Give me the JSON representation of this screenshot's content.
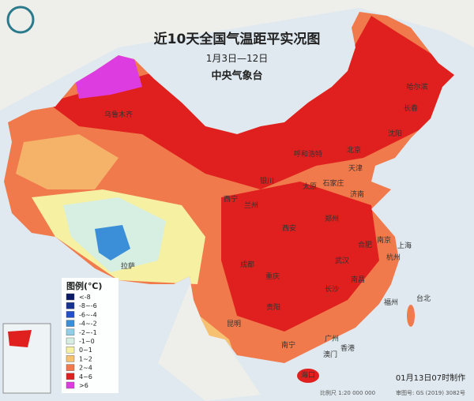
{
  "header": {
    "title": "近10天全国气温距平实况图",
    "subtitle": "1月3日—12日",
    "issuer": "中央气象台"
  },
  "legend": {
    "title": "图例(℃)",
    "items": [
      {
        "label": "<-8",
        "color": "#0b1a66"
      },
      {
        "label": "-8~-6",
        "color": "#16338f"
      },
      {
        "label": "-6~-4",
        "color": "#2350c8"
      },
      {
        "label": "-4~-2",
        "color": "#3b8fd8"
      },
      {
        "label": "-2~-1",
        "color": "#8fd0e8"
      },
      {
        "label": "-1~0",
        "color": "#d6efe2"
      },
      {
        "label": "0~1",
        "color": "#f5f0a2"
      },
      {
        "label": "1~2",
        "color": "#f6c170"
      },
      {
        "label": "2~4",
        "color": "#f07a4c"
      },
      {
        "label": "4~6",
        "color": "#e0201e"
      },
      {
        "label": ">6",
        "color": "#dd3ce0"
      }
    ]
  },
  "cities": [
    "哈尔滨",
    "长春",
    "沈阳",
    "北京",
    "天津",
    "呼和浩特",
    "石家庄",
    "太原",
    "济南",
    "银川",
    "兰州",
    "西宁",
    "西安",
    "郑州",
    "南京",
    "上海",
    "合肥",
    "杭州",
    "武汉",
    "成都",
    "重庆",
    "长沙",
    "南昌",
    "福州",
    "台北",
    "贵阳",
    "昆明",
    "南宁",
    "广州",
    "澳门",
    "香港",
    "海口",
    "拉萨",
    "乌鲁木齐"
  ],
  "footer": {
    "made": "01月13日07时制作",
    "scale": "比例尺 1:20 000 000",
    "approval": "审图号: GS (2019) 3082号"
  }
}
